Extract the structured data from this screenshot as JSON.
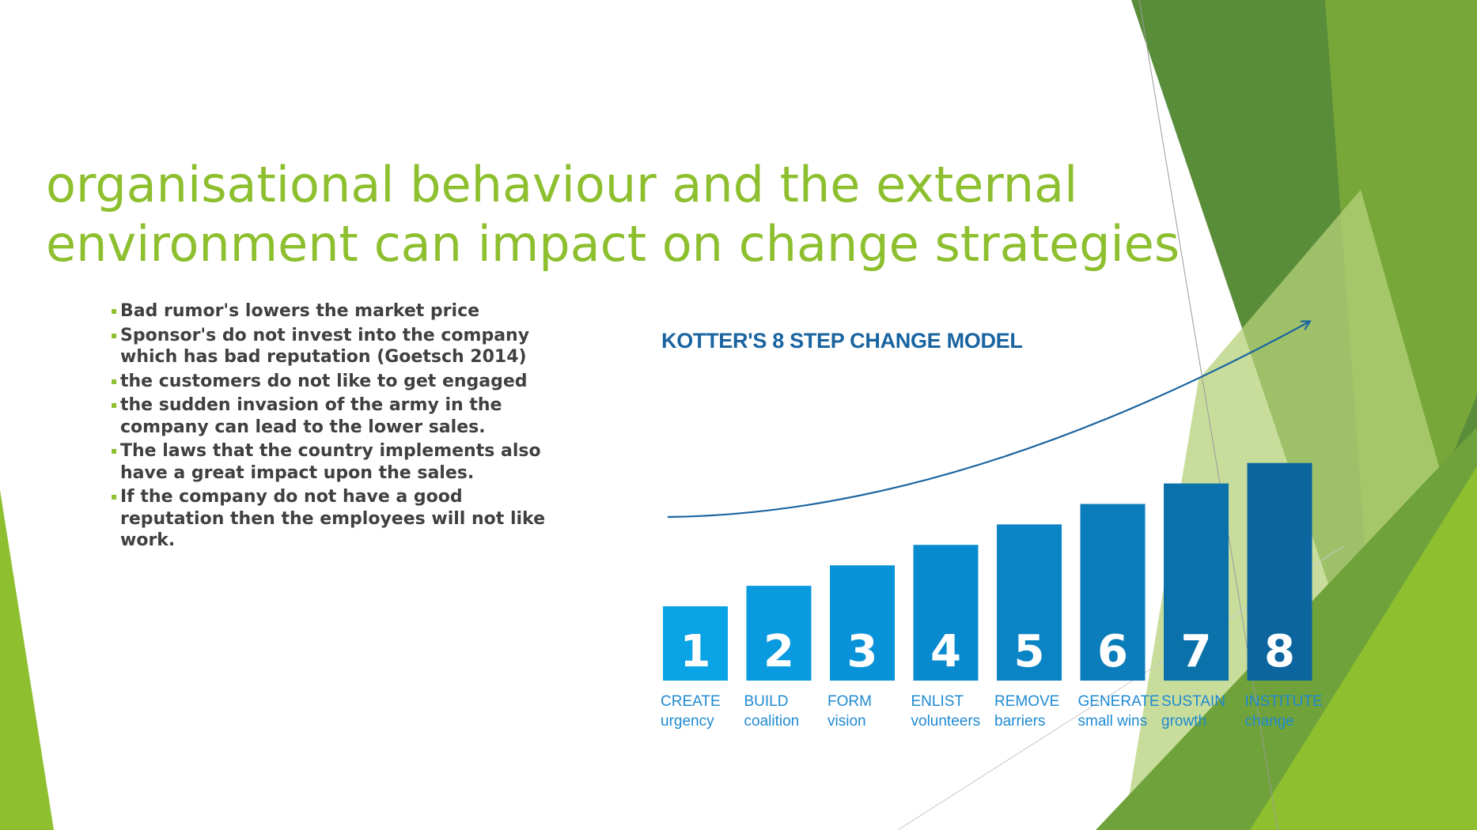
{
  "slide": {
    "title_line1": "organisational behaviour and the external",
    "title_line2": "environment can impact on change strategies",
    "bullets": [
      {
        "lines": [
          "Bad rumor's lowers the market price"
        ]
      },
      {
        "lines": [
          "Sponsor's do not invest into the company",
          "which has bad reputation (Goetsch 2014)"
        ]
      },
      {
        "lines": [
          "the customers do not like to get engaged"
        ]
      },
      {
        "lines": [
          "the sudden invasion of the army in the",
          "company can lead to the lower sales."
        ]
      },
      {
        "lines": [
          "The laws that the country implements also",
          "have a great impact upon the sales."
        ]
      },
      {
        "lines": [
          "If the company do not have a good",
          "reputation then the employees will not like",
          "work."
        ]
      }
    ],
    "colors": {
      "accent": "#8dbf2f",
      "text": "#404040",
      "green_dark": "#4f8a2a",
      "green_light": "#9cc83a"
    }
  },
  "chart_data": {
    "type": "bar",
    "title": "KOTTER'S 8 STEP CHANGE MODEL",
    "categories": [
      {
        "number": "1",
        "line1": "CREATE",
        "line2": "urgency"
      },
      {
        "number": "2",
        "line1": "BUILD",
        "line2": "coalition"
      },
      {
        "number": "3",
        "line1": "FORM",
        "line2": "vision"
      },
      {
        "number": "4",
        "line1": "ENLIST",
        "line2": "volunteers"
      },
      {
        "number": "5",
        "line1": "REMOVE",
        "line2": "barriers"
      },
      {
        "number": "6",
        "line1": "GENERATE",
        "line2": "small wins"
      },
      {
        "number": "7",
        "line1": "SUSTAIN",
        "line2": "growth"
      },
      {
        "number": "8",
        "line1": "INSTITUTE",
        "line2": "change"
      }
    ],
    "values": [
      1,
      2,
      3,
      4,
      5,
      6,
      7,
      8
    ],
    "bar_colors": [
      "#0aa3e6",
      "#0a9ae0",
      "#0893d8",
      "#088bce",
      "#0a84c4",
      "#0b7dbb",
      "#0b71ab",
      "#0c659e"
    ],
    "trend_arrow": "rising",
    "grid": false
  }
}
